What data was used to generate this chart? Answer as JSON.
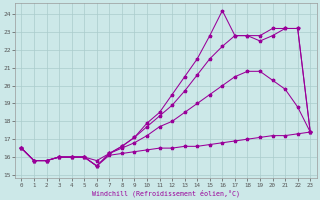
{
  "xlabel": "Windchill (Refroidissement éolien,°C)",
  "xlim": [
    -0.5,
    23.5
  ],
  "ylim": [
    14.8,
    24.6
  ],
  "yticks": [
    15,
    16,
    17,
    18,
    19,
    20,
    21,
    22,
    23,
    24
  ],
  "xticks": [
    0,
    1,
    2,
    3,
    4,
    5,
    6,
    7,
    8,
    9,
    10,
    11,
    12,
    13,
    14,
    15,
    16,
    17,
    18,
    19,
    20,
    21,
    22,
    23
  ],
  "bg_color": "#cce8e8",
  "grid_color": "#aacccc",
  "line_color": "#990099",
  "line1_y": [
    16.5,
    15.8,
    15.8,
    16.0,
    16.0,
    16.0,
    15.5,
    16.1,
    16.2,
    16.3,
    16.4,
    16.5,
    16.5,
    16.6,
    16.6,
    16.7,
    16.8,
    16.9,
    17.0,
    17.1,
    17.2,
    17.2,
    17.3,
    17.4
  ],
  "line2_y": [
    16.5,
    15.8,
    15.8,
    16.0,
    16.0,
    16.0,
    15.5,
    16.2,
    16.5,
    16.8,
    17.2,
    17.7,
    18.0,
    18.5,
    19.0,
    19.5,
    20.0,
    20.5,
    20.8,
    20.8,
    20.3,
    19.8,
    18.8,
    17.4
  ],
  "line3_y": [
    16.5,
    15.8,
    15.8,
    16.0,
    16.0,
    16.0,
    15.8,
    16.2,
    16.6,
    17.1,
    17.7,
    18.3,
    18.9,
    19.7,
    20.6,
    21.5,
    22.2,
    22.8,
    22.8,
    22.5,
    22.8,
    23.2,
    23.2,
    17.4
  ],
  "line4_y": [
    16.5,
    15.8,
    15.8,
    16.0,
    16.0,
    16.0,
    15.5,
    16.2,
    16.6,
    17.1,
    17.9,
    18.5,
    19.5,
    20.5,
    21.5,
    22.8,
    24.2,
    22.8,
    22.8,
    22.8,
    23.2,
    23.2,
    23.2,
    17.4
  ]
}
